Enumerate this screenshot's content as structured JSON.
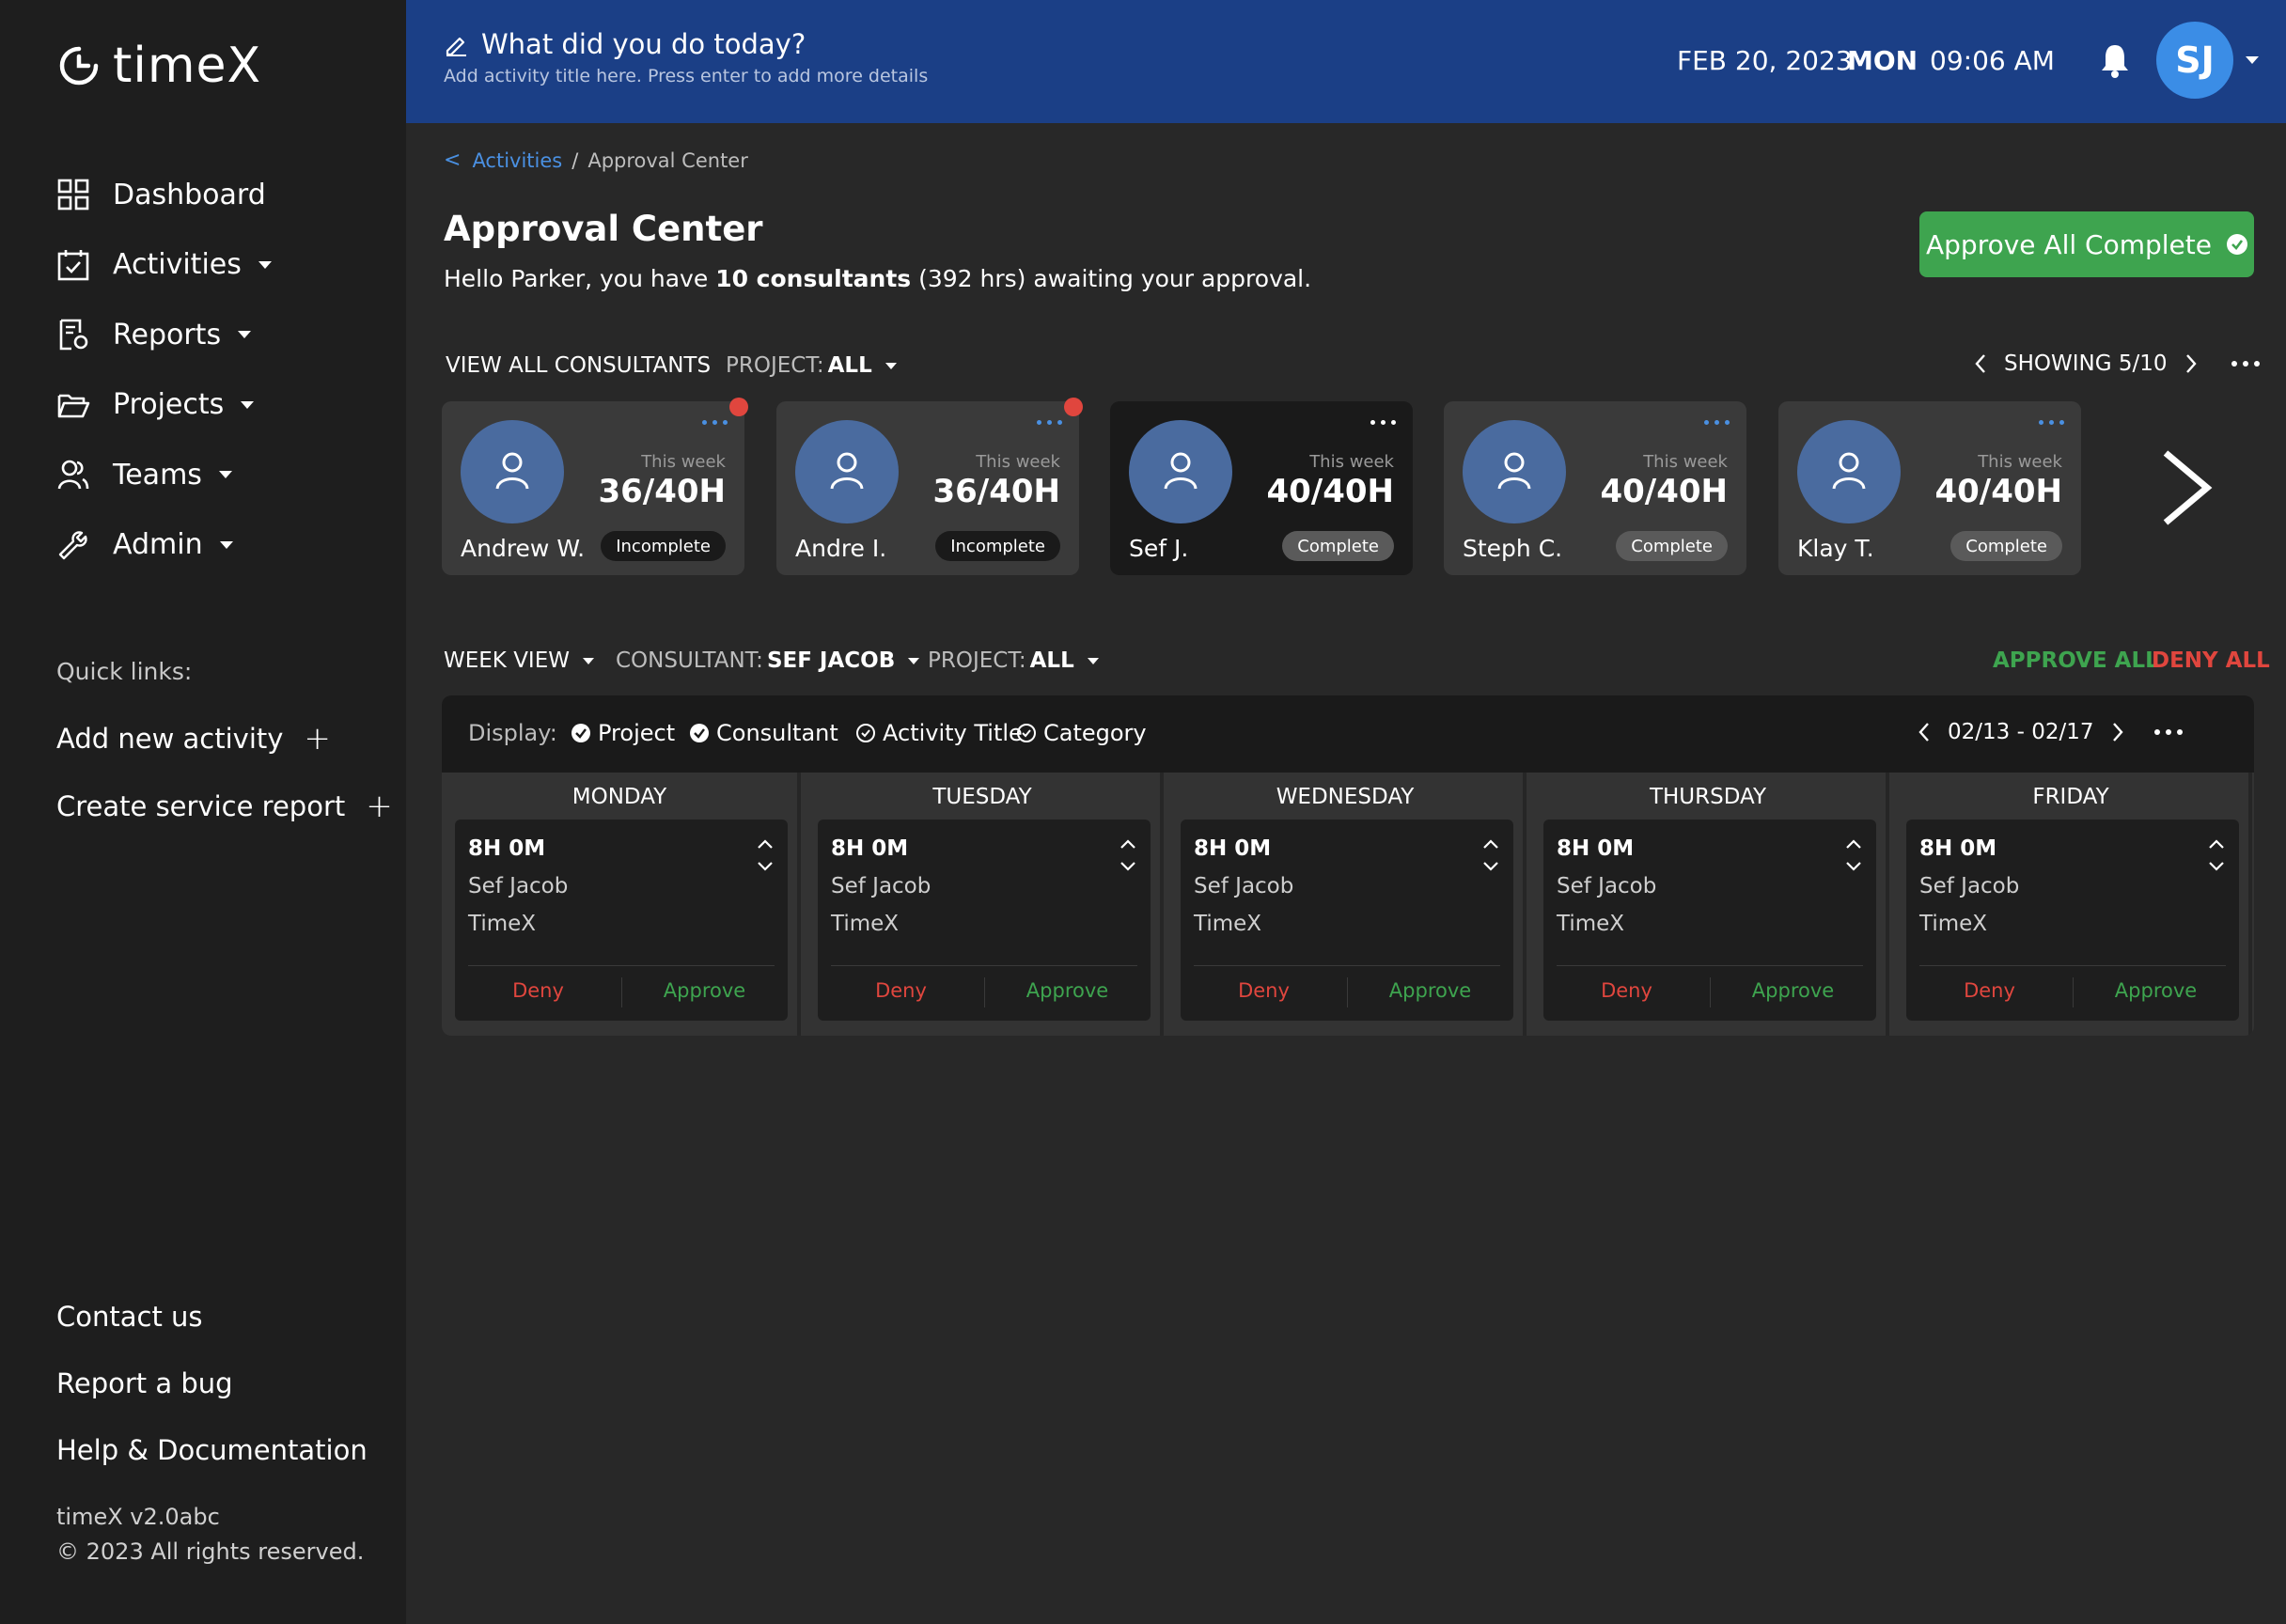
{
  "app": {
    "logo_text": "timeX"
  },
  "sidebar": {
    "nav": [
      {
        "label": "Dashboard",
        "icon": "dashboard-icon",
        "caret": false
      },
      {
        "label": "Activities",
        "icon": "calendar-check-icon",
        "caret": true
      },
      {
        "label": "Reports",
        "icon": "report-icon",
        "caret": true
      },
      {
        "label": "Projects",
        "icon": "folder-open-icon",
        "caret": true
      },
      {
        "label": "Teams",
        "icon": "team-icon",
        "caret": true
      },
      {
        "label": "Admin",
        "icon": "wrench-icon",
        "caret": true
      }
    ],
    "quick_links_title": "Quick links:",
    "quick_links": [
      "Add new activity",
      "Create service report"
    ],
    "footer_links": [
      "Contact us",
      "Report a bug",
      "Help & Documentation"
    ],
    "version": "timeX v2.0abc",
    "copyright": "© 2023 All rights reserved."
  },
  "topbar": {
    "title": "What did you do today?",
    "subtitle": "Add activity title here. Press enter    to add more details",
    "date": "FEB 20, 2023",
    "day": "MON",
    "time": "09:06 AM",
    "avatar_initials": "SJ"
  },
  "breadcrumb": {
    "parent": "Activities",
    "current": "Approval Center"
  },
  "page": {
    "title": "Approval Center",
    "hello_prefix": "Hello Parker, you have ",
    "hello_count": "10 consultants",
    "hello_suffix": " (392 hrs) awaiting your approval.",
    "approve_all_complete": "Approve All Complete"
  },
  "consultants_bar": {
    "view_all": "VIEW ALL CONSULTANTS",
    "project_label": "PROJECT:",
    "project_value": "ALL",
    "showing": "SHOWING 5/10"
  },
  "cards": [
    {
      "name": "Andrew W.",
      "week_label": "This week",
      "hours": "36/40H",
      "status": "Incomplete",
      "alert": true,
      "selected": false
    },
    {
      "name": "Andre I.",
      "week_label": "This week",
      "hours": "36/40H",
      "status": "Incomplete",
      "alert": true,
      "selected": false
    },
    {
      "name": "Sef J.",
      "week_label": "This week",
      "hours": "40/40H",
      "status": "Complete",
      "alert": false,
      "selected": true
    },
    {
      "name": "Steph C.",
      "week_label": "This week",
      "hours": "40/40H",
      "status": "Complete",
      "alert": false,
      "selected": false
    },
    {
      "name": "Klay T.",
      "week_label": "This week",
      "hours": "40/40H",
      "status": "Complete",
      "alert": false,
      "selected": false
    }
  ],
  "week_bar": {
    "view": "WEEK VIEW",
    "consultant_label": "CONSULTANT:",
    "consultant_value": "SEF JACOB",
    "project_label": "PROJECT:",
    "project_value": "ALL",
    "approve_all": "APPROVE ALL",
    "deny_all": "DENY ALL"
  },
  "display": {
    "label": "Display:",
    "options": [
      {
        "label": "Project",
        "checked": true
      },
      {
        "label": "Consultant",
        "checked": true
      },
      {
        "label": "Activity Title",
        "checked": false
      },
      {
        "label": "Category",
        "checked": false
      }
    ],
    "range": "02/13 - 02/17"
  },
  "days": [
    {
      "day": "MONDAY",
      "hours": "8H 0M",
      "name": "Sef Jacob",
      "project": "TimeX",
      "deny": "Deny",
      "approve": "Approve"
    },
    {
      "day": "TUESDAY",
      "hours": "8H 0M",
      "name": "Sef Jacob",
      "project": "TimeX",
      "deny": "Deny",
      "approve": "Approve"
    },
    {
      "day": "WEDNESDAY",
      "hours": "8H 0M",
      "name": "Sef Jacob",
      "project": "TimeX",
      "deny": "Deny",
      "approve": "Approve"
    },
    {
      "day": "THURSDAY",
      "hours": "8H 0M",
      "name": "Sef Jacob",
      "project": "TimeX",
      "deny": "Deny",
      "approve": "Approve"
    },
    {
      "day": "FRIDAY",
      "hours": "8H 0M",
      "name": "Sef Jacob",
      "project": "TimeX",
      "deny": "Deny",
      "approve": "Approve"
    }
  ],
  "colors": {
    "sidebar": "#1e1e1e",
    "background": "#282828",
    "topbar": "#1b3f86",
    "accent_blue": "#4a90e2",
    "approve_green": "#3ea44f",
    "deny_red": "#e0463e"
  }
}
